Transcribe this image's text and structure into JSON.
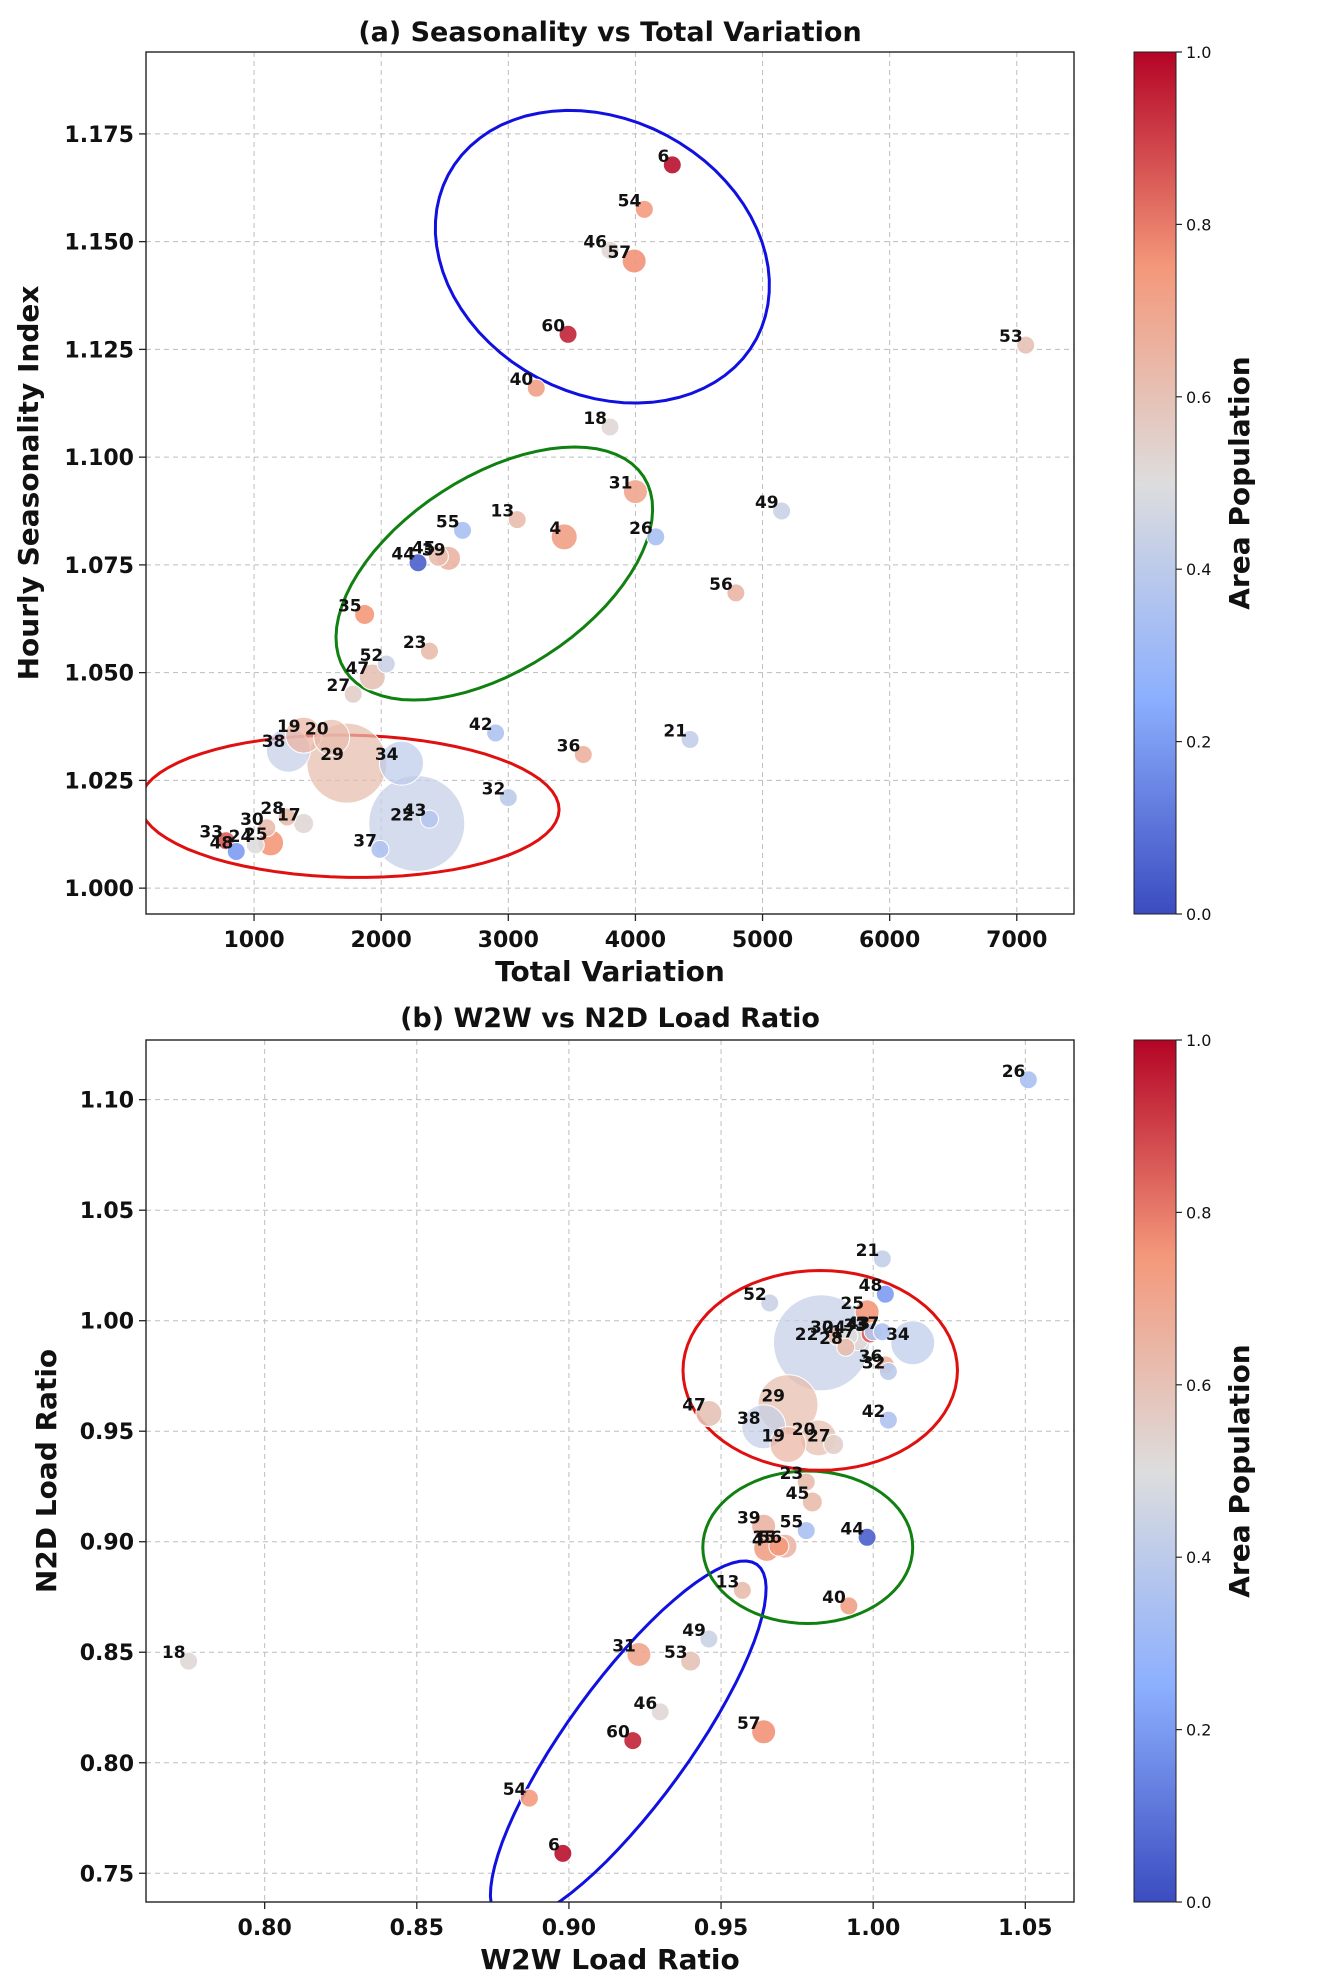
{
  "chart_data": [
    {
      "type": "scatter",
      "title": "(a) Seasonality vs Total Variation",
      "xlabel": "Total Variation",
      "ylabel": "Hourly Seasonality Index",
      "xlim": [
        150,
        7450
      ],
      "ylim": [
        0.994,
        1.194
      ],
      "xticks": [
        1000,
        2000,
        3000,
        4000,
        5000,
        6000,
        7000
      ],
      "yticks": [
        1.0,
        1.025,
        1.05,
        1.075,
        1.1,
        1.125,
        1.15,
        1.175
      ],
      "ytick_labels": [
        "1.000",
        "1.025",
        "1.050",
        "1.075",
        "1.100",
        "1.125",
        "1.150",
        "1.175"
      ],
      "grid": true,
      "colorbar": {
        "label": "Area Population",
        "range": [
          0,
          1
        ],
        "ticks": [
          "0.0",
          "0.2",
          "0.4",
          "0.6",
          "0.8",
          "1.0"
        ],
        "colormap": "coolwarm"
      },
      "points": [
        {
          "id": "6",
          "x": 4290,
          "y": 1.1678,
          "c": 0.98,
          "size": 9
        },
        {
          "id": "54",
          "x": 4070,
          "y": 1.1575,
          "c": 0.74,
          "size": 9
        },
        {
          "id": "46",
          "x": 3800,
          "y": 1.148,
          "c": 0.52,
          "size": 9
        },
        {
          "id": "57",
          "x": 3990,
          "y": 1.1455,
          "c": 0.76,
          "size": 12
        },
        {
          "id": "60",
          "x": 3470,
          "y": 1.1285,
          "c": 0.95,
          "size": 9
        },
        {
          "id": "40",
          "x": 3220,
          "y": 1.116,
          "c": 0.72,
          "size": 9
        },
        {
          "id": "18",
          "x": 3800,
          "y": 1.107,
          "c": 0.52,
          "size": 9
        },
        {
          "id": "53",
          "x": 7070,
          "y": 1.126,
          "c": 0.6,
          "size": 9
        },
        {
          "id": "31",
          "x": 4000,
          "y": 1.092,
          "c": 0.7,
          "size": 12
        },
        {
          "id": "49",
          "x": 5150,
          "y": 1.0875,
          "c": 0.44,
          "size": 9
        },
        {
          "id": "55",
          "x": 2640,
          "y": 1.083,
          "c": 0.34,
          "size": 9
        },
        {
          "id": "13",
          "x": 3070,
          "y": 1.0855,
          "c": 0.62,
          "size": 9
        },
        {
          "id": "4",
          "x": 3440,
          "y": 1.0815,
          "c": 0.72,
          "size": 13
        },
        {
          "id": "26",
          "x": 4160,
          "y": 1.0815,
          "c": 0.34,
          "size": 9
        },
        {
          "id": "44",
          "x": 2290,
          "y": 1.0755,
          "c": 0.05,
          "size": 9
        },
        {
          "id": "45",
          "x": 2450,
          "y": 1.077,
          "c": 0.62,
          "size": 10
        },
        {
          "id": "39",
          "x": 2530,
          "y": 1.0765,
          "c": 0.65,
          "size": 12
        },
        {
          "id": "56",
          "x": 4790,
          "y": 1.0685,
          "c": 0.64,
          "size": 9
        },
        {
          "id": "35",
          "x": 1870,
          "y": 1.0635,
          "c": 0.75,
          "size": 10
        },
        {
          "id": "23",
          "x": 2380,
          "y": 1.055,
          "c": 0.62,
          "size": 9
        },
        {
          "id": "52",
          "x": 2040,
          "y": 1.052,
          "c": 0.44,
          "size": 9
        },
        {
          "id": "47",
          "x": 1930,
          "y": 1.049,
          "c": 0.6,
          "size": 13
        },
        {
          "id": "27",
          "x": 1780,
          "y": 1.045,
          "c": 0.55,
          "size": 9
        },
        {
          "id": "19",
          "x": 1390,
          "y": 1.0355,
          "c": 0.65,
          "size": 18
        },
        {
          "id": "20",
          "x": 1610,
          "y": 1.035,
          "c": 0.62,
          "size": 18
        },
        {
          "id": "38",
          "x": 1270,
          "y": 1.032,
          "c": 0.42,
          "size": 22
        },
        {
          "id": "29",
          "x": 1730,
          "y": 1.029,
          "c": 0.62,
          "size": 40
        },
        {
          "id": "34",
          "x": 2160,
          "y": 1.029,
          "c": 0.4,
          "size": 22
        },
        {
          "id": "42",
          "x": 2900,
          "y": 1.036,
          "c": 0.36,
          "size": 9
        },
        {
          "id": "21",
          "x": 4430,
          "y": 1.0345,
          "c": 0.42,
          "size": 9
        },
        {
          "id": "36",
          "x": 3590,
          "y": 1.031,
          "c": 0.66,
          "size": 9
        },
        {
          "id": "22",
          "x": 2280,
          "y": 1.015,
          "c": 0.42,
          "size": 48
        },
        {
          "id": "43",
          "x": 2380,
          "y": 1.016,
          "c": 0.38,
          "size": 9
        },
        {
          "id": "32",
          "x": 3000,
          "y": 1.021,
          "c": 0.4,
          "size": 9
        },
        {
          "id": "28",
          "x": 1260,
          "y": 1.0165,
          "c": 0.62,
          "size": 9
        },
        {
          "id": "17",
          "x": 1390,
          "y": 1.015,
          "c": 0.52,
          "size": 10
        },
        {
          "id": "30",
          "x": 1100,
          "y": 1.014,
          "c": 0.62,
          "size": 9
        },
        {
          "id": "25",
          "x": 1130,
          "y": 1.0105,
          "c": 0.75,
          "size": 13
        },
        {
          "id": "24",
          "x": 1010,
          "y": 1.01,
          "c": 0.5,
          "size": 9
        },
        {
          "id": "33",
          "x": 780,
          "y": 1.011,
          "c": 0.85,
          "size": 9
        },
        {
          "id": "48",
          "x": 860,
          "y": 1.0085,
          "c": 0.2,
          "size": 9
        },
        {
          "id": "37",
          "x": 1990,
          "y": 1.009,
          "c": 0.36,
          "size": 9
        }
      ],
      "ellipses": [
        {
          "cx": 3740,
          "cy": 1.1465,
          "rx": 1080,
          "ry": 0.0405,
          "angle": 62,
          "color": "#1010e0"
        },
        {
          "cx": 2890,
          "cy": 1.073,
          "rx": 1400,
          "ry": 0.0225,
          "angle": 33,
          "color": "#108010"
        },
        {
          "cx": 1750,
          "cy": 1.019,
          "rx": 1650,
          "ry": 0.0165,
          "angle": -1,
          "color": "#e01010"
        }
      ]
    },
    {
      "type": "scatter",
      "title": "(b) W2W vs N2D Load Ratio",
      "xlabel": "W2W Load Ratio",
      "ylabel": "N2D Load Ratio",
      "xlim": [
        0.761,
        1.066
      ],
      "ylim": [
        0.737,
        1.127
      ],
      "xticks": [
        0.8,
        0.85,
        0.9,
        0.95,
        1.0,
        1.05
      ],
      "xtick_labels": [
        "0.80",
        "0.85",
        "0.90",
        "0.95",
        "1.00",
        "1.05"
      ],
      "yticks": [
        0.75,
        0.8,
        0.85,
        0.9,
        0.95,
        1.0,
        1.05,
        1.1
      ],
      "ytick_labels": [
        "0.75",
        "0.80",
        "0.85",
        "0.90",
        "0.95",
        "1.00",
        "1.05",
        "1.10"
      ],
      "grid": true,
      "colorbar": {
        "label": "Area Population",
        "range": [
          0,
          1
        ],
        "ticks": [
          "0.0",
          "0.2",
          "0.4",
          "0.6",
          "0.8",
          "1.0"
        ],
        "colormap": "coolwarm"
      },
      "points": [
        {
          "id": "26",
          "x": 1.051,
          "y": 1.109,
          "c": 0.34,
          "size": 9
        },
        {
          "id": "21",
          "x": 1.003,
          "y": 1.028,
          "c": 0.42,
          "size": 9
        },
        {
          "id": "48",
          "x": 1.004,
          "y": 1.012,
          "c": 0.2,
          "size": 9
        },
        {
          "id": "52",
          "x": 0.966,
          "y": 1.008,
          "c": 0.44,
          "size": 9
        },
        {
          "id": "25",
          "x": 0.998,
          "y": 1.004,
          "c": 0.75,
          "size": 12
        },
        {
          "id": "30",
          "x": 0.988,
          "y": 0.993,
          "c": 0.62,
          "size": 9
        },
        {
          "id": "24",
          "x": 0.992,
          "y": 0.993,
          "c": 0.5,
          "size": 9
        },
        {
          "id": "22",
          "x": 0.983,
          "y": 0.99,
          "c": 0.42,
          "size": 48
        },
        {
          "id": "17",
          "x": 0.995,
          "y": 0.991,
          "c": 0.52,
          "size": 10
        },
        {
          "id": "28",
          "x": 0.991,
          "y": 0.988,
          "c": 0.62,
          "size": 9
        },
        {
          "id": "33",
          "x": 0.999,
          "y": 0.994,
          "c": 0.85,
          "size": 9
        },
        {
          "id": "43",
          "x": 1.0,
          "y": 0.995,
          "c": 0.38,
          "size": 9
        },
        {
          "id": "37",
          "x": 1.003,
          "y": 0.995,
          "c": 0.36,
          "size": 9
        },
        {
          "id": "34",
          "x": 1.013,
          "y": 0.99,
          "c": 0.4,
          "size": 22
        },
        {
          "id": "36",
          "x": 1.004,
          "y": 0.98,
          "c": 0.66,
          "size": 9
        },
        {
          "id": "32",
          "x": 1.005,
          "y": 0.977,
          "c": 0.4,
          "size": 9
        },
        {
          "id": "47",
          "x": 0.946,
          "y": 0.958,
          "c": 0.6,
          "size": 13
        },
        {
          "id": "29",
          "x": 0.972,
          "y": 0.962,
          "c": 0.62,
          "size": 30
        },
        {
          "id": "38",
          "x": 0.964,
          "y": 0.952,
          "c": 0.42,
          "size": 22
        },
        {
          "id": "42",
          "x": 1.005,
          "y": 0.955,
          "c": 0.36,
          "size": 9
        },
        {
          "id": "20",
          "x": 0.982,
          "y": 0.947,
          "c": 0.62,
          "size": 18
        },
        {
          "id": "19",
          "x": 0.972,
          "y": 0.944,
          "c": 0.65,
          "size": 18
        },
        {
          "id": "27",
          "x": 0.987,
          "y": 0.944,
          "c": 0.55,
          "size": 10
        },
        {
          "id": "23",
          "x": 0.978,
          "y": 0.927,
          "c": 0.62,
          "size": 9
        },
        {
          "id": "45",
          "x": 0.98,
          "y": 0.918,
          "c": 0.62,
          "size": 10
        },
        {
          "id": "39",
          "x": 0.964,
          "y": 0.907,
          "c": 0.65,
          "size": 12
        },
        {
          "id": "55",
          "x": 0.978,
          "y": 0.905,
          "c": 0.34,
          "size": 9
        },
        {
          "id": "44",
          "x": 0.998,
          "y": 0.902,
          "c": 0.05,
          "size": 9
        },
        {
          "id": "4",
          "x": 0.965,
          "y": 0.897,
          "c": 0.72,
          "size": 13
        },
        {
          "id": "35",
          "x": 0.969,
          "y": 0.898,
          "c": 0.75,
          "size": 10
        },
        {
          "id": "56",
          "x": 0.971,
          "y": 0.898,
          "c": 0.64,
          "size": 12
        },
        {
          "id": "13",
          "x": 0.957,
          "y": 0.878,
          "c": 0.62,
          "size": 9
        },
        {
          "id": "40",
          "x": 0.992,
          "y": 0.871,
          "c": 0.72,
          "size": 9
        },
        {
          "id": "49",
          "x": 0.946,
          "y": 0.856,
          "c": 0.44,
          "size": 9
        },
        {
          "id": "31",
          "x": 0.923,
          "y": 0.849,
          "c": 0.7,
          "size": 12
        },
        {
          "id": "53",
          "x": 0.94,
          "y": 0.846,
          "c": 0.6,
          "size": 10
        },
        {
          "id": "18",
          "x": 0.775,
          "y": 0.846,
          "c": 0.52,
          "size": 9
        },
        {
          "id": "46",
          "x": 0.93,
          "y": 0.823,
          "c": 0.52,
          "size": 9
        },
        {
          "id": "57",
          "x": 0.964,
          "y": 0.814,
          "c": 0.76,
          "size": 12
        },
        {
          "id": "60",
          "x": 0.921,
          "y": 0.81,
          "c": 0.95,
          "size": 9
        },
        {
          "id": "54",
          "x": 0.887,
          "y": 0.784,
          "c": 0.74,
          "size": 9
        },
        {
          "id": "6",
          "x": 0.898,
          "y": 0.759,
          "c": 0.98,
          "size": 9
        }
      ],
      "ellipses": [
        {
          "cx": 0.9195,
          "cy": 0.8095,
          "rx": 0.072,
          "ry": 0.0275,
          "angle": 54,
          "color": "#1010e0"
        },
        {
          "cx": 0.9785,
          "cy": 0.8975,
          "rx": 0.0345,
          "ry": 0.0345,
          "angle": 0,
          "color": "#108010"
        },
        {
          "cx": 0.9826,
          "cy": 0.9775,
          "rx": 0.0451,
          "ry": 0.0452,
          "angle": 0,
          "color": "#e01010"
        }
      ]
    }
  ]
}
